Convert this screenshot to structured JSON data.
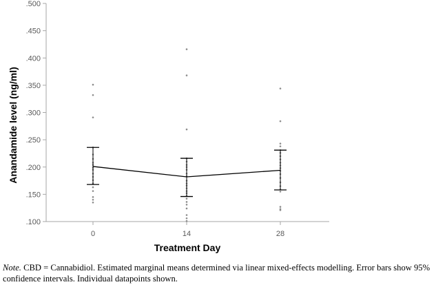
{
  "chart_data": {
    "type": "line",
    "title": "",
    "xlabel": "Treatment Day",
    "ylabel": "Anandamide level (ng/ml)",
    "categories": [
      "0",
      "14",
      "28"
    ],
    "ylim": [
      0.1,
      0.5
    ],
    "yticks": [
      0.1,
      0.15,
      0.2,
      0.25,
      0.3,
      0.35,
      0.4,
      0.45,
      0.5
    ],
    "ytick_labels": [
      ".100",
      ".150",
      ".200",
      ".250",
      ".300",
      ".350",
      ".400",
      ".450",
      ".500"
    ],
    "grid": false,
    "series": [
      {
        "name": "Estimated marginal mean",
        "values": [
          0.201,
          0.182,
          0.194
        ],
        "ci_lower": [
          0.168,
          0.146,
          0.158
        ],
        "ci_upper": [
          0.236,
          0.216,
          0.231
        ]
      }
    ],
    "individual_points": [
      [
        0.351,
        0.332,
        0.291,
        0.236,
        0.223,
        0.215,
        0.208,
        0.204,
        0.199,
        0.195,
        0.188,
        0.182,
        0.176,
        0.17,
        0.163,
        0.156,
        0.145,
        0.14,
        0.135
      ],
      [
        0.416,
        0.368,
        0.269,
        0.216,
        0.21,
        0.204,
        0.2,
        0.195,
        0.188,
        0.183,
        0.175,
        0.17,
        0.166,
        0.161,
        0.156,
        0.152,
        0.147,
        0.142,
        0.136,
        0.131,
        0.124,
        0.112,
        0.106,
        0.101
      ],
      [
        0.344,
        0.284,
        0.243,
        0.238,
        0.231,
        0.226,
        0.22,
        0.214,
        0.208,
        0.203,
        0.198,
        0.193,
        0.187,
        0.18,
        0.172,
        0.165,
        0.159,
        0.155,
        0.127,
        0.123,
        0.121
      ]
    ],
    "colors": {
      "line": "#000000",
      "errorbar": "#000000",
      "points": "#8c8c8c",
      "axis": "#a6a6a6"
    }
  },
  "caption": {
    "label": "Note.",
    "text": "CBD = Cannabidiol. Estimated marginal means determined via linear mixed-effects modelling. Error bars show 95% confidence intervals. Individual datapoints shown."
  }
}
